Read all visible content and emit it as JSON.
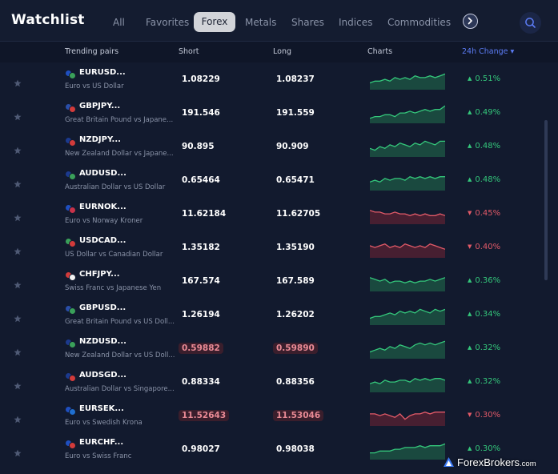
{
  "app": {
    "title": "Watchlist"
  },
  "tabs": [
    {
      "label": "All",
      "active": false
    },
    {
      "label": "Favorites",
      "active": false
    },
    {
      "label": "Forex",
      "active": true
    },
    {
      "label": "Metals",
      "active": false
    },
    {
      "label": "Shares",
      "active": false
    },
    {
      "label": "Indices",
      "active": false
    },
    {
      "label": "Commodities",
      "active": false
    }
  ],
  "icons": {
    "next": "chevron-right-icon",
    "search": "search-icon",
    "favorite": "star-icon"
  },
  "colors": {
    "accent": "#5c7cf5",
    "up": "#34c77b",
    "down": "#e25a68",
    "background": "#121a2e"
  },
  "columns": {
    "pair": "Trending pairs",
    "short": "Short",
    "long": "Long",
    "charts": "Charts",
    "change": "24h Change",
    "change_sort_icon": "▾"
  },
  "rows": [
    {
      "symbol": "EURUSD...",
      "desc": "Euro vs US Dollar",
      "short": "1.08229",
      "long": "1.08237",
      "change": "0.51%",
      "dir": "up",
      "highlight": false,
      "flags": [
        "#1f4fbf",
        "#3aa05a"
      ],
      "trend": [
        2,
        3,
        3,
        4,
        3,
        5,
        4,
        5,
        4,
        6,
        5,
        5,
        6,
        5,
        6,
        7
      ]
    },
    {
      "symbol": "GBPJPY...",
      "desc": "Great Britain Pound vs Japane...",
      "short": "191.546",
      "long": "191.559",
      "change": "0.49%",
      "dir": "up",
      "highlight": false,
      "flags": [
        "#2a4ea8",
        "#d23b3b"
      ],
      "trend": [
        1,
        2,
        2,
        3,
        3,
        2,
        4,
        4,
        5,
        4,
        5,
        6,
        5,
        6,
        6,
        8
      ]
    },
    {
      "symbol": "NZDJPY...",
      "desc": "New Zealand Dollar vs Japane...",
      "short": "90.895",
      "long": "90.909",
      "change": "0.48%",
      "dir": "up",
      "highlight": false,
      "flags": [
        "#1c3a8e",
        "#d23b3b"
      ],
      "trend": [
        3,
        2,
        4,
        3,
        5,
        4,
        6,
        5,
        4,
        6,
        5,
        7,
        6,
        5,
        7,
        7
      ]
    },
    {
      "symbol": "AUDUSD...",
      "desc": "Australian Dollar vs US Dollar",
      "short": "0.65464",
      "long": "0.65471",
      "change": "0.48%",
      "dir": "up",
      "highlight": false,
      "flags": [
        "#1c3a8e",
        "#3aa05a"
      ],
      "trend": [
        3,
        4,
        3,
        5,
        4,
        5,
        5,
        4,
        6,
        5,
        6,
        5,
        6,
        5,
        6,
        6
      ]
    },
    {
      "symbol": "EURNOK...",
      "desc": "Euro vs Norway Kroner",
      "short": "11.62184",
      "long": "11.62705",
      "change": "0.45%",
      "dir": "down",
      "highlight": false,
      "flags": [
        "#1f4fbf",
        "#c8324a"
      ],
      "trend": [
        6,
        5,
        5,
        4,
        4,
        5,
        4,
        4,
        3,
        4,
        3,
        4,
        3,
        3,
        4,
        3
      ]
    },
    {
      "symbol": "USDCAD...",
      "desc": "US Dollar vs Canadian Dollar",
      "short": "1.35182",
      "long": "1.35190",
      "change": "0.40%",
      "dir": "down",
      "highlight": false,
      "flags": [
        "#3aa05a",
        "#d23b3b"
      ],
      "trend": [
        5,
        4,
        5,
        6,
        4,
        5,
        4,
        6,
        5,
        4,
        5,
        4,
        6,
        5,
        4,
        3
      ]
    },
    {
      "symbol": "CHFJPY...",
      "desc": "Swiss Franc vs Japanese Yen",
      "short": "167.574",
      "long": "167.589",
      "change": "0.36%",
      "dir": "up",
      "highlight": false,
      "flags": [
        "#d23b3b",
        "#f2f2f2"
      ],
      "trend": [
        6,
        5,
        4,
        5,
        3,
        4,
        4,
        3,
        4,
        3,
        4,
        4,
        5,
        4,
        5,
        6
      ]
    },
    {
      "symbol": "GBPUSD...",
      "desc": "Great Britain Pound vs US Doll...",
      "short": "1.26194",
      "long": "1.26202",
      "change": "0.34%",
      "dir": "up",
      "highlight": false,
      "flags": [
        "#2a4ea8",
        "#3aa05a"
      ],
      "trend": [
        2,
        3,
        3,
        4,
        5,
        4,
        6,
        5,
        6,
        5,
        7,
        6,
        5,
        7,
        6,
        7
      ]
    },
    {
      "symbol": "NZDUSD...",
      "desc": "New Zealand Dollar vs US Doll...",
      "short": "0.59882",
      "long": "0.59890",
      "change": "0.32%",
      "dir": "up",
      "highlight": true,
      "flags": [
        "#1c3a8e",
        "#3aa05a"
      ],
      "trend": [
        2,
        3,
        4,
        3,
        5,
        4,
        6,
        5,
        4,
        6,
        7,
        6,
        7,
        6,
        7,
        8
      ]
    },
    {
      "symbol": "AUDSGD...",
      "desc": "Australian Dollar vs Singapore...",
      "short": "0.88334",
      "long": "0.88356",
      "change": "0.32%",
      "dir": "up",
      "highlight": false,
      "flags": [
        "#1c3a8e",
        "#d23b3b"
      ],
      "trend": [
        3,
        4,
        3,
        5,
        4,
        4,
        5,
        5,
        4,
        6,
        5,
        6,
        5,
        6,
        6,
        5
      ]
    },
    {
      "symbol": "EURSEK...",
      "desc": "Euro vs Swedish Krona",
      "short": "11.52643",
      "long": "11.53046",
      "change": "0.30%",
      "dir": "down",
      "highlight": true,
      "flags": [
        "#1f4fbf",
        "#1f6fd0"
      ],
      "trend": [
        5,
        5,
        4,
        5,
        4,
        3,
        5,
        2,
        4,
        5,
        5,
        6,
        5,
        6,
        6,
        6
      ]
    },
    {
      "symbol": "EURCHF...",
      "desc": "Euro vs Swiss Franc",
      "short": "0.98027",
      "long": "0.98038",
      "change": "0.30%",
      "dir": "up",
      "highlight": false,
      "flags": [
        "#1f4fbf",
        "#d23b3b"
      ],
      "trend": [
        2,
        2,
        3,
        3,
        3,
        4,
        4,
        5,
        5,
        5,
        6,
        5,
        6,
        6,
        6,
        7
      ]
    }
  ],
  "brand": {
    "name": "ForexBrokers",
    "domain": ".com"
  }
}
